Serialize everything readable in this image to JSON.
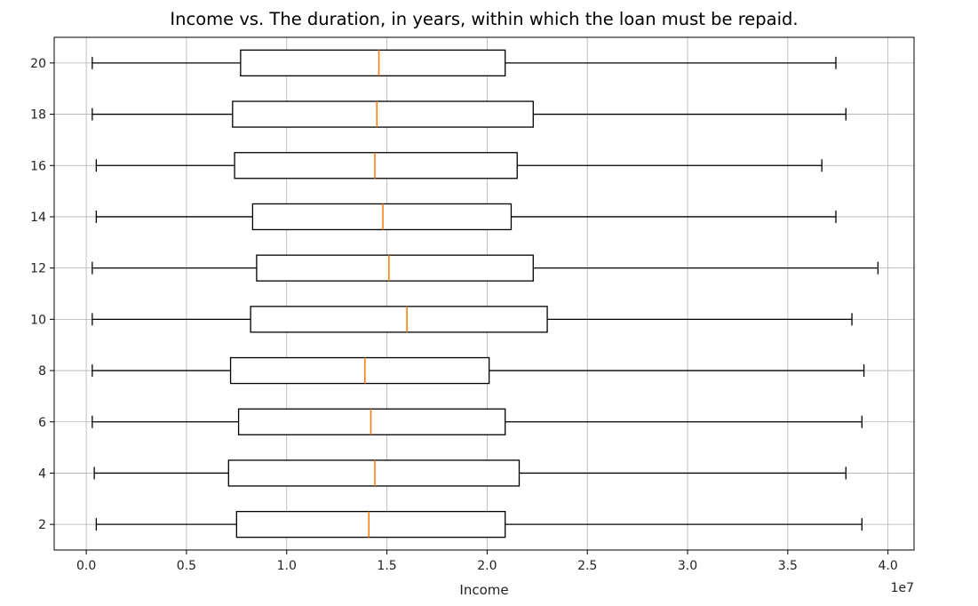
{
  "chart_data": {
    "type": "boxplot",
    "orientation": "horizontal",
    "title": "Income vs. The duration, in years, within which the loan must be repaid.",
    "xlabel": "Income",
    "ylabel": "",
    "x_offset_label": "1e7",
    "x_ticks": [
      "0.0",
      "0.5",
      "1.0",
      "1.5",
      "2.0",
      "2.5",
      "3.0",
      "3.5",
      "4.0"
    ],
    "x_tick_values": [
      0,
      0.5,
      1.0,
      1.5,
      2.0,
      2.5,
      3.0,
      3.5,
      4.0
    ],
    "xlim": [
      -0.16,
      4.13
    ],
    "ylim": [
      1,
      21
    ],
    "grid": true,
    "categories": [
      "2",
      "4",
      "6",
      "8",
      "10",
      "12",
      "14",
      "16",
      "18",
      "20"
    ],
    "boxes": [
      {
        "label": "2",
        "whisker_low": 0.05,
        "q1": 0.75,
        "median": 1.41,
        "q3": 2.09,
        "whisker_high": 3.87
      },
      {
        "label": "4",
        "whisker_low": 0.04,
        "q1": 0.71,
        "median": 1.44,
        "q3": 2.16,
        "whisker_high": 3.79
      },
      {
        "label": "6",
        "whisker_low": 0.03,
        "q1": 0.76,
        "median": 1.42,
        "q3": 2.09,
        "whisker_high": 3.87
      },
      {
        "label": "8",
        "whisker_low": 0.03,
        "q1": 0.72,
        "median": 1.39,
        "q3": 2.01,
        "whisker_high": 3.88
      },
      {
        "label": "10",
        "whisker_low": 0.03,
        "q1": 0.82,
        "median": 1.6,
        "q3": 2.3,
        "whisker_high": 3.82
      },
      {
        "label": "12",
        "whisker_low": 0.03,
        "q1": 0.85,
        "median": 1.51,
        "q3": 2.23,
        "whisker_high": 3.95
      },
      {
        "label": "14",
        "whisker_low": 0.05,
        "q1": 0.83,
        "median": 1.48,
        "q3": 2.12,
        "whisker_high": 3.74
      },
      {
        "label": "16",
        "whisker_low": 0.05,
        "q1": 0.74,
        "median": 1.44,
        "q3": 2.15,
        "whisker_high": 3.67
      },
      {
        "label": "18",
        "whisker_low": 0.03,
        "q1": 0.73,
        "median": 1.45,
        "q3": 2.23,
        "whisker_high": 3.79
      },
      {
        "label": "20",
        "whisker_low": 0.03,
        "q1": 0.77,
        "median": 1.46,
        "q3": 2.09,
        "whisker_high": 3.74
      }
    ],
    "colors": {
      "box": "#000000",
      "median": "#ff7f0e",
      "grid": "#b0b0b0"
    }
  }
}
